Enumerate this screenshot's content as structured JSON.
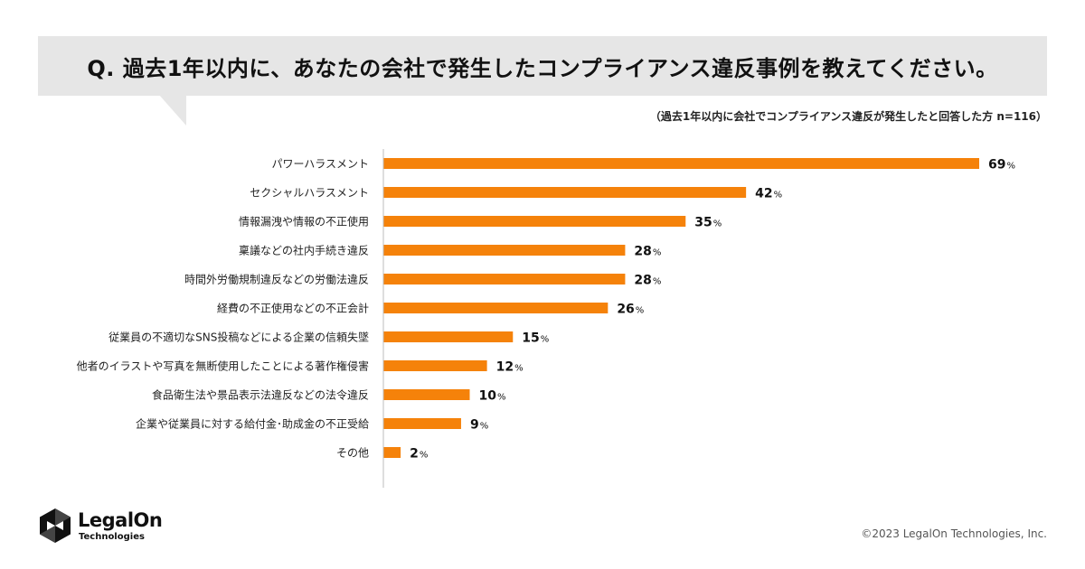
{
  "question": "Q. 過去1年以内に、あなたの会社で発生したコンプライアンス違反事例を教えてください。",
  "sample_note": "（過去1年以内に会社でコンプライアンス違反が発生したと回答した方 n=116）",
  "chart_data": {
    "type": "bar",
    "orientation": "horizontal",
    "title": "Q. 過去1年以内に、あなたの会社で発生したコンプライアンス違反事例を教えてください。",
    "categories": [
      "パワーハラスメント",
      "セクシャルハラスメント",
      "情報漏洩や情報の不正使用",
      "稟議などの社内手続き違反",
      "時間外労働規制違反などの労働法違反",
      "経費の不正使用などの不正会計",
      "従業員の不適切なSNS投稿などによる企業の信頼失墜",
      "他者のイラストや写真を無断使用したことによる著作権侵害",
      "食品衛生法や景品表示法違反などの法令違反",
      "企業や従業員に対する給付金･助成金の不正受給",
      "その他"
    ],
    "values": [
      69,
      42,
      35,
      28,
      28,
      26,
      15,
      12,
      10,
      9,
      2
    ],
    "value_suffix": "%",
    "xlim": [
      0,
      69
    ],
    "bar_color": "#f5820a"
  },
  "logo": {
    "name": "LegalOn",
    "sub": "Technologies"
  },
  "copyright": "©2023 LegalOn Technologies, Inc."
}
